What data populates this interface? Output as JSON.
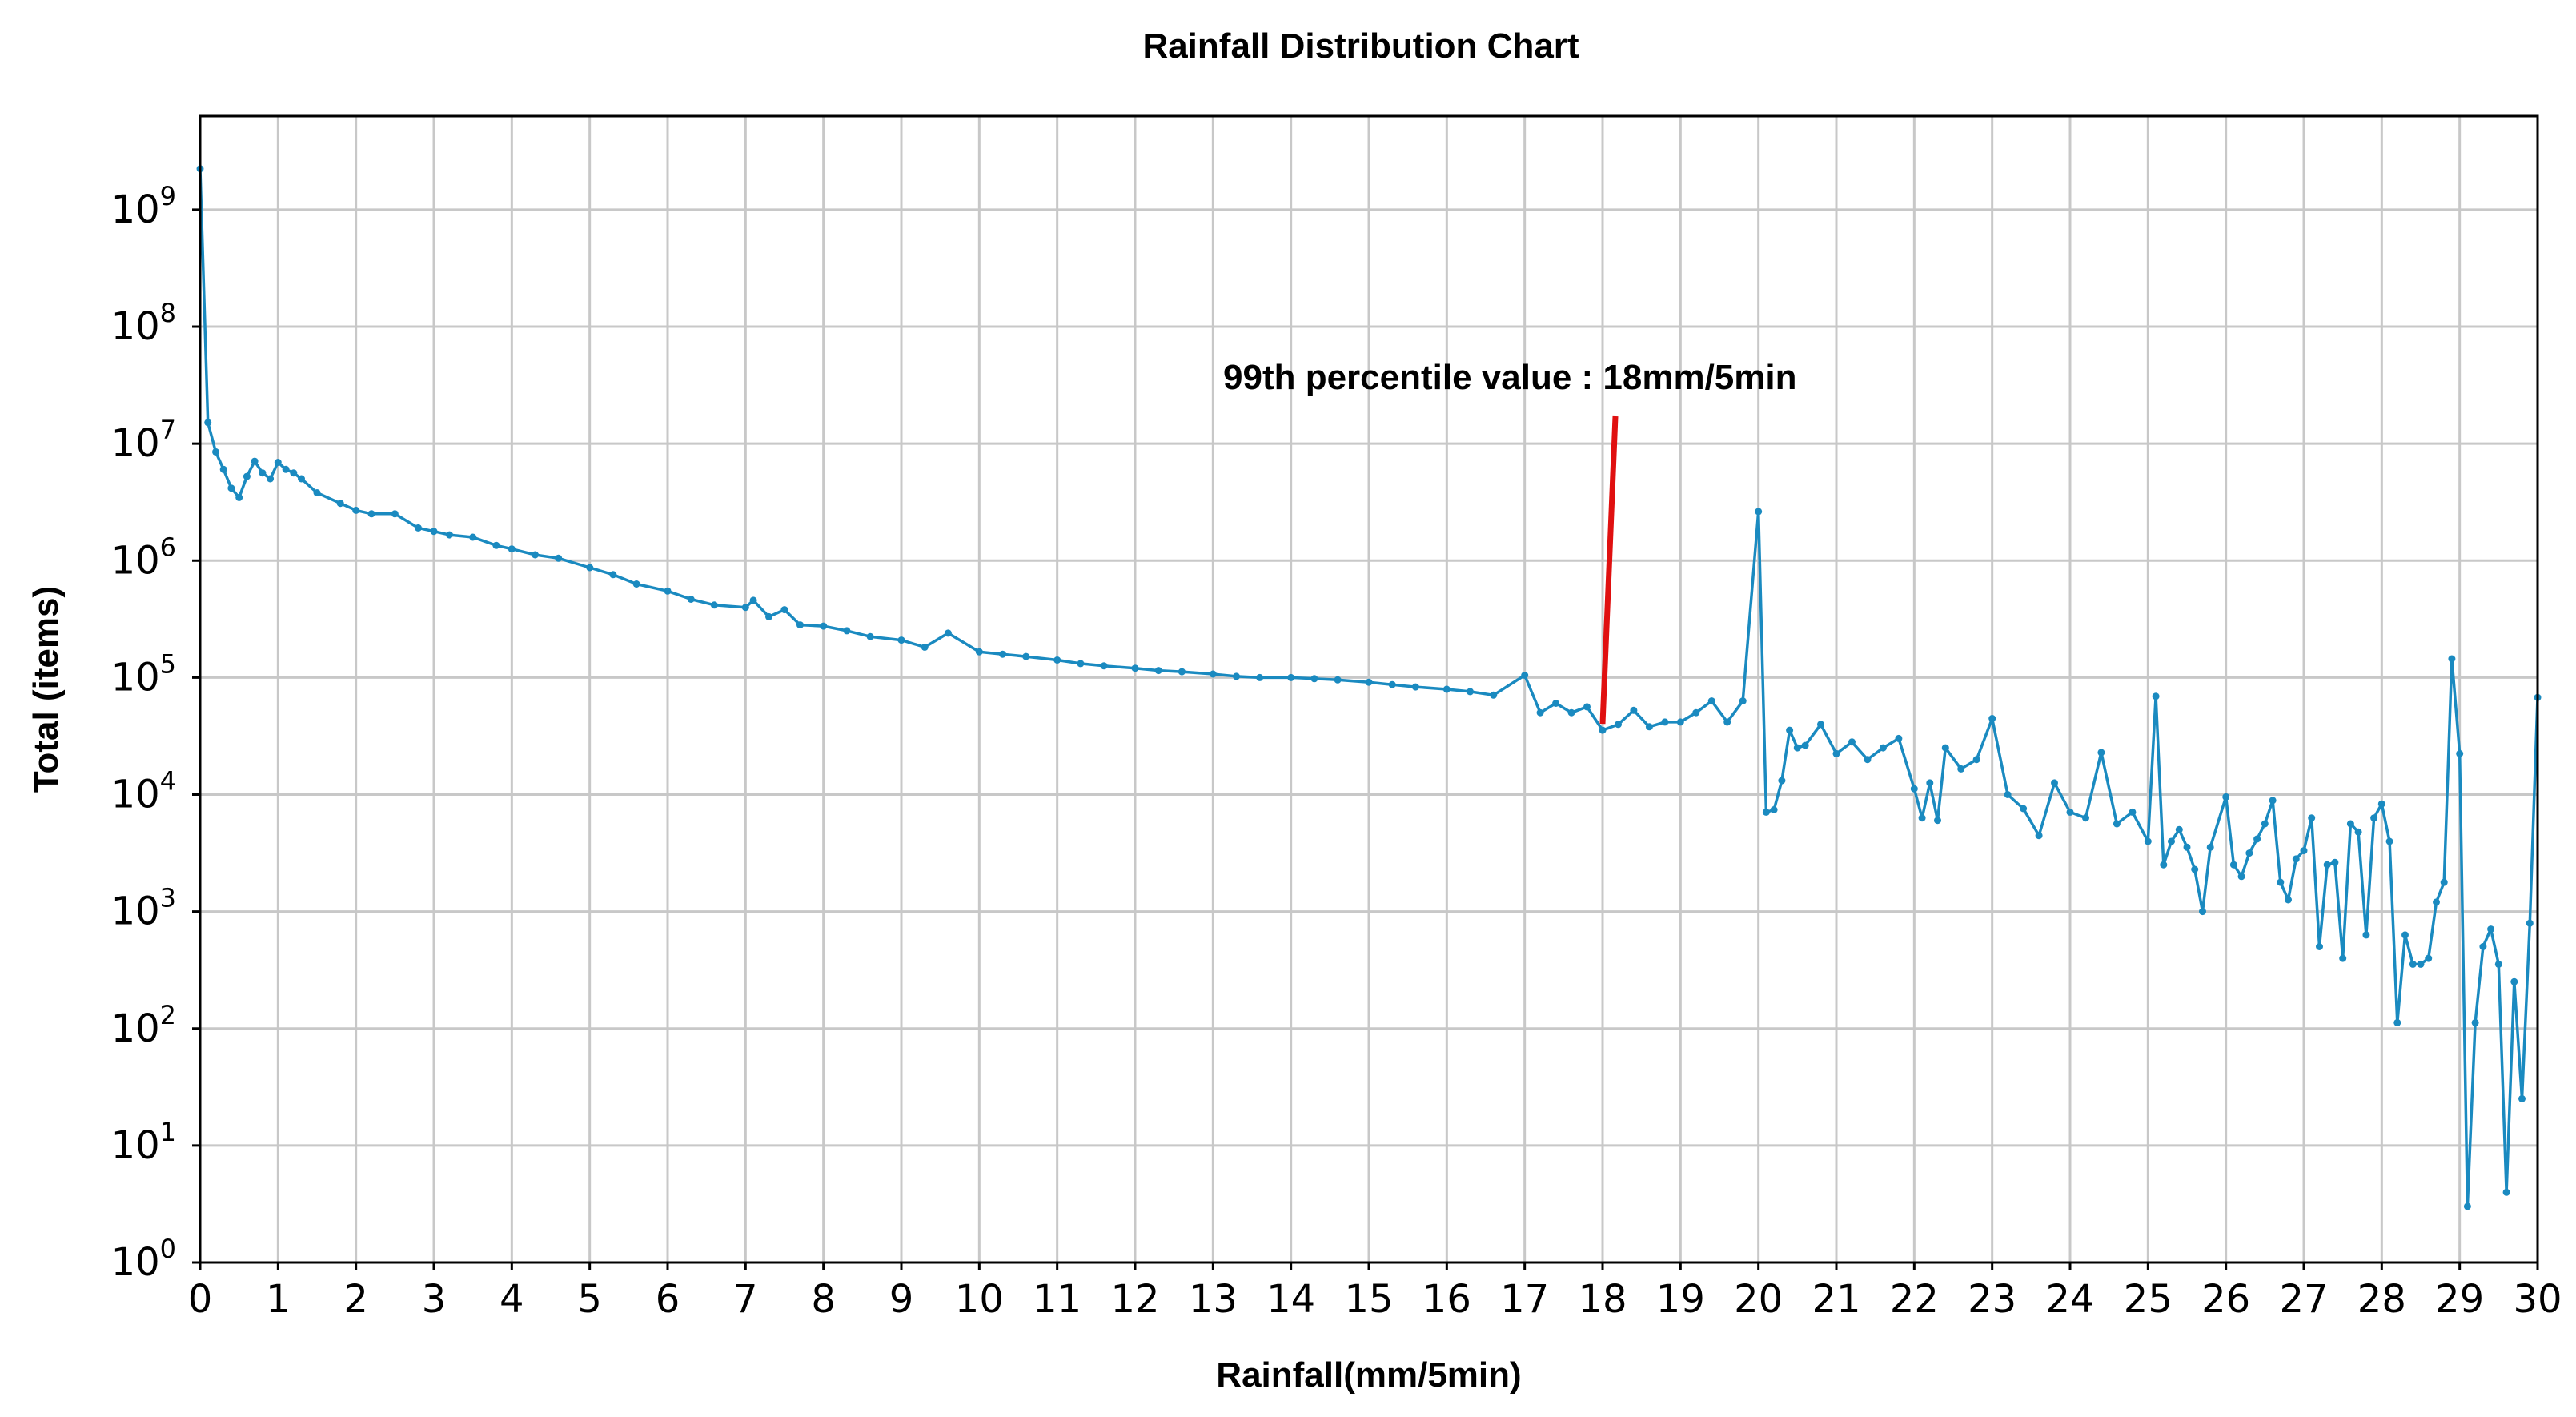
{
  "chart_data": {
    "type": "line",
    "title": "Rainfall Distribution Chart",
    "xlabel": "Rainfall(mm/5min)",
    "ylabel": "Total (items)",
    "xlim": [
      0,
      30
    ],
    "ylim_log10": [
      0,
      9.8
    ],
    "yscale": "log",
    "grid": true,
    "x_ticks": [
      0,
      1,
      2,
      3,
      4,
      5,
      6,
      7,
      8,
      9,
      10,
      11,
      12,
      13,
      14,
      15,
      16,
      17,
      18,
      19,
      20,
      21,
      22,
      23,
      24,
      25,
      26,
      27,
      28,
      29,
      30
    ],
    "y_ticks": [
      {
        "base": "10",
        "exp": "0",
        "log": 0
      },
      {
        "base": "10",
        "exp": "1",
        "log": 1
      },
      {
        "base": "10",
        "exp": "2",
        "log": 2
      },
      {
        "base": "10",
        "exp": "3",
        "log": 3
      },
      {
        "base": "10",
        "exp": "4",
        "log": 4
      },
      {
        "base": "10",
        "exp": "5",
        "log": 5
      },
      {
        "base": "10",
        "exp": "6",
        "log": 6
      },
      {
        "base": "10",
        "exp": "7",
        "log": 7
      },
      {
        "base": "10",
        "exp": "8",
        "log": 8
      },
      {
        "base": "10",
        "exp": "9",
        "log": 9
      }
    ],
    "annotation": {
      "text": "99th percentile value : 18mm/5min",
      "x_value": 18,
      "color": "#e01010"
    },
    "series": [
      {
        "name": "Total",
        "color": "#1a8ac0",
        "x": [
          0,
          0.1,
          0.2,
          0.3,
          0.4,
          0.5,
          0.6,
          0.7,
          0.8,
          0.9,
          1,
          1.1,
          1.2,
          1.3,
          1.5,
          1.8,
          2,
          2.2,
          2.5,
          2.8,
          3,
          3.2,
          3.5,
          3.8,
          4,
          4.3,
          4.6,
          5,
          5.3,
          5.6,
          6,
          6.3,
          6.6,
          7,
          7.1,
          7.3,
          7.5,
          7.7,
          8,
          8.3,
          8.6,
          9,
          9.3,
          9.6,
          10,
          10.3,
          10.6,
          11,
          11.3,
          11.6,
          12,
          12.3,
          12.6,
          13,
          13.3,
          13.6,
          14,
          14.3,
          14.6,
          15,
          15.3,
          15.6,
          16,
          16.3,
          16.6,
          17,
          17.2,
          17.4,
          17.6,
          17.8,
          18,
          18.2,
          18.4,
          18.6,
          18.8,
          19,
          19.2,
          19.4,
          19.6,
          19.8,
          20,
          20.1,
          20.2,
          20.3,
          20.4,
          20.5,
          20.6,
          20.8,
          21,
          21.2,
          21.4,
          21.6,
          21.8,
          22,
          22.1,
          22.2,
          22.3,
          22.4,
          22.6,
          22.8,
          23,
          23.2,
          23.4,
          23.6,
          23.8,
          24,
          24.2,
          24.4,
          24.6,
          24.8,
          25,
          25.1,
          25.2,
          25.3,
          25.4,
          25.5,
          25.6,
          25.7,
          25.8,
          26,
          26.1,
          26.2,
          26.3,
          26.4,
          26.5,
          26.6,
          26.7,
          26.8,
          26.9,
          27,
          27.1,
          27.2,
          27.3,
          27.4,
          27.5,
          27.6,
          27.7,
          27.8,
          27.9,
          28,
          28.1,
          28.2,
          28.3,
          28.4,
          28.5,
          28.6,
          28.7,
          28.8,
          28.9,
          29,
          29.1,
          29.2,
          29.3,
          29.4,
          29.5,
          29.6,
          29.7,
          29.8,
          29.9,
          30
        ],
        "log10": [
          9.35,
          7.18,
          6.93,
          6.78,
          6.62,
          6.54,
          6.72,
          6.85,
          6.75,
          6.7,
          6.84,
          6.78,
          6.75,
          6.7,
          6.58,
          6.49,
          6.43,
          6.4,
          6.4,
          6.28,
          6.25,
          6.22,
          6.2,
          6.13,
          6.1,
          6.05,
          6.02,
          5.94,
          5.88,
          5.8,
          5.74,
          5.67,
          5.62,
          5.6,
          5.66,
          5.52,
          5.58,
          5.45,
          5.44,
          5.4,
          5.35,
          5.32,
          5.26,
          5.38,
          5.22,
          5.2,
          5.18,
          5.15,
          5.12,
          5.1,
          5.08,
          5.06,
          5.05,
          5.03,
          5.01,
          5.0,
          5.0,
          4.99,
          4.98,
          4.96,
          4.94,
          4.92,
          4.9,
          4.88,
          4.85,
          5.02,
          4.7,
          4.78,
          4.7,
          4.75,
          4.55,
          4.6,
          4.72,
          4.58,
          4.62,
          4.62,
          4.7,
          4.8,
          4.62,
          4.8,
          6.42,
          3.85,
          3.87,
          4.12,
          4.55,
          4.4,
          4.42,
          4.6,
          4.35,
          4.45,
          4.3,
          4.4,
          4.48,
          4.05,
          3.8,
          4.1,
          3.78,
          4.4,
          4.22,
          4.3,
          4.65,
          4.0,
          3.88,
          3.65,
          4.1,
          3.85,
          3.8,
          4.36,
          3.75,
          3.85,
          3.6,
          4.84,
          3.4,
          3.6,
          3.7,
          3.55,
          3.36,
          3.0,
          3.55,
          3.98,
          3.4,
          3.3,
          3.5,
          3.62,
          3.75,
          3.95,
          3.25,
          3.1,
          3.45,
          3.52,
          3.8,
          2.7,
          3.4,
          3.42,
          2.6,
          3.75,
          3.68,
          2.8,
          3.8,
          3.92,
          3.6,
          2.05,
          2.8,
          2.55,
          2.55,
          2.6,
          3.08,
          3.25,
          5.16,
          4.35,
          0.48,
          2.05,
          2.7,
          2.85,
          2.55,
          0.6,
          2.4,
          1.4,
          2.9,
          4.83
        ]
      }
    ]
  }
}
